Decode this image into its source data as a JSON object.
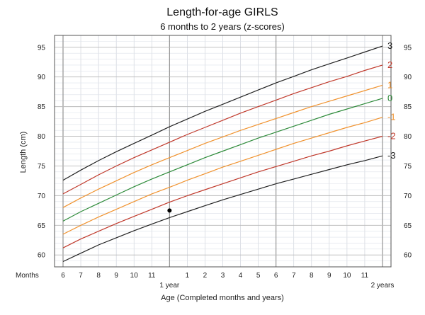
{
  "chart_data": {
    "type": "line",
    "title": "Length-for-age  GIRLS",
    "subtitle": "6 months to 2 years (z-scores)",
    "xlabel": "Age (Completed months and years)",
    "ylabel": "Length (cm)",
    "x_unit": "months",
    "xlim": [
      6,
      24
    ],
    "ylim": [
      58,
      97
    ],
    "grid": true,
    "months_label": "Months",
    "x_ticks": [
      {
        "value": 6,
        "label": "6"
      },
      {
        "value": 7,
        "label": "7"
      },
      {
        "value": 8,
        "label": "8"
      },
      {
        "value": 9,
        "label": "9"
      },
      {
        "value": 10,
        "label": "10"
      },
      {
        "value": 11,
        "label": "11"
      },
      {
        "value": 13,
        "label": "1"
      },
      {
        "value": 14,
        "label": "2"
      },
      {
        "value": 15,
        "label": "3"
      },
      {
        "value": 16,
        "label": "4"
      },
      {
        "value": 17,
        "label": "5"
      },
      {
        "value": 18,
        "label": "6"
      },
      {
        "value": 19,
        "label": "7"
      },
      {
        "value": 20,
        "label": "8"
      },
      {
        "value": 21,
        "label": "9"
      },
      {
        "value": 22,
        "label": "10"
      },
      {
        "value": 23,
        "label": "11"
      }
    ],
    "year_ticks": [
      {
        "value": 12,
        "label": "1 year"
      },
      {
        "value": 24,
        "label": "2 years"
      }
    ],
    "y_ticks": [
      60,
      65,
      70,
      75,
      80,
      85,
      90,
      95
    ],
    "x": [
      6,
      7,
      8,
      9,
      10,
      11,
      12,
      13,
      14,
      15,
      16,
      17,
      18,
      19,
      20,
      21,
      22,
      23,
      24
    ],
    "series": [
      {
        "name": "3",
        "color": "#222222",
        "values": [
          72.6,
          74.3,
          75.9,
          77.4,
          78.8,
          80.2,
          81.6,
          82.9,
          84.2,
          85.4,
          86.6,
          87.8,
          89.0,
          90.1,
          91.2,
          92.2,
          93.2,
          94.2,
          95.2
        ]
      },
      {
        "name": "2",
        "color": "#c0392b",
        "values": [
          70.3,
          71.9,
          73.5,
          75.0,
          76.4,
          77.7,
          79.0,
          80.3,
          81.5,
          82.7,
          83.9,
          85.0,
          86.1,
          87.2,
          88.2,
          89.2,
          90.1,
          91.1,
          92.0
        ]
      },
      {
        "name": "1",
        "color": "#f0922e",
        "values": [
          68.0,
          69.6,
          71.1,
          72.5,
          73.9,
          75.2,
          76.4,
          77.6,
          78.8,
          79.9,
          81.0,
          82.0,
          83.0,
          84.0,
          85.0,
          85.9,
          86.8,
          87.7,
          88.6
        ]
      },
      {
        "name": "0",
        "color": "#2e8b3a",
        "values": [
          65.7,
          67.3,
          68.7,
          70.1,
          71.5,
          72.8,
          74.0,
          75.2,
          76.4,
          77.5,
          78.6,
          79.7,
          80.7,
          81.7,
          82.7,
          83.7,
          84.6,
          85.5,
          86.4
        ]
      },
      {
        "name": "-1",
        "color": "#f0922e",
        "values": [
          63.5,
          65.0,
          66.4,
          67.7,
          69.0,
          70.3,
          71.4,
          72.6,
          73.7,
          74.8,
          75.8,
          76.8,
          77.8,
          78.8,
          79.7,
          80.6,
          81.5,
          82.3,
          83.2
        ]
      },
      {
        "name": "-2",
        "color": "#c0392b",
        "values": [
          61.2,
          62.7,
          64.0,
          65.3,
          66.5,
          67.7,
          68.9,
          70.0,
          71.0,
          72.0,
          73.0,
          74.0,
          74.9,
          75.8,
          76.7,
          77.5,
          78.4,
          79.2,
          80.0
        ]
      },
      {
        "name": "-3",
        "color": "#222222",
        "values": [
          58.9,
          60.3,
          61.7,
          62.9,
          64.1,
          65.2,
          66.3,
          67.3,
          68.3,
          69.3,
          70.2,
          71.1,
          72.0,
          72.8,
          73.6,
          74.4,
          75.2,
          75.9,
          76.7
        ]
      }
    ],
    "points": [
      {
        "x": 12,
        "y": 67.5,
        "color": "#000000"
      }
    ]
  }
}
